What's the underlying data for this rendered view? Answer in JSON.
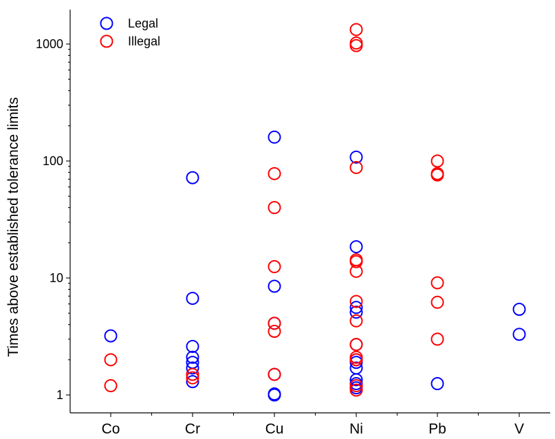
{
  "chart_data": {
    "type": "scatter",
    "title": "",
    "xlabel": "",
    "ylabel": "Times above established tolerance limits",
    "categories": [
      "Co",
      "Cr",
      "Cu",
      "Ni",
      "Pb",
      "V"
    ],
    "y_scale": "log",
    "ylim": [
      0.85,
      2000
    ],
    "y_ticks": [
      1,
      10,
      100,
      1000
    ],
    "y_tick_labels": [
      "1",
      "10",
      "100",
      "1000"
    ],
    "grid": false,
    "legend": {
      "placement": "top-left",
      "entries": [
        "Legal",
        "Illegal"
      ]
    },
    "colors": {
      "Legal": "#0000ff",
      "Illegal": "#ff0000"
    },
    "series": [
      {
        "name": "Legal",
        "points": [
          {
            "x": "Co",
            "y": 3.2
          },
          {
            "x": "Cr",
            "y": 72
          },
          {
            "x": "Cr",
            "y": 6.7
          },
          {
            "x": "Cr",
            "y": 2.6
          },
          {
            "x": "Cr",
            "y": 2.1
          },
          {
            "x": "Cr",
            "y": 1.9
          },
          {
            "x": "Cr",
            "y": 1.7
          },
          {
            "x": "Cr",
            "y": 1.5
          },
          {
            "x": "Cr",
            "y": 1.3
          },
          {
            "x": "Cu",
            "y": 160
          },
          {
            "x": "Cu",
            "y": 8.5
          },
          {
            "x": "Cu",
            "y": 4.1
          },
          {
            "x": "Cu",
            "y": 1.5
          },
          {
            "x": "Cu",
            "y": 1.02
          },
          {
            "x": "Cu",
            "y": 1.0
          },
          {
            "x": "Ni",
            "y": 108
          },
          {
            "x": "Ni",
            "y": 18.5
          },
          {
            "x": "Ni",
            "y": 5.6
          },
          {
            "x": "Ni",
            "y": 5.1
          },
          {
            "x": "Ni",
            "y": 2.7
          },
          {
            "x": "Ni",
            "y": 2.0
          },
          {
            "x": "Ni",
            "y": 1.9
          },
          {
            "x": "Ni",
            "y": 1.7
          },
          {
            "x": "Ni",
            "y": 1.35
          },
          {
            "x": "Ni",
            "y": 1.25
          },
          {
            "x": "Ni",
            "y": 1.15
          },
          {
            "x": "Pb",
            "y": 1.25
          },
          {
            "x": "V",
            "y": 5.4
          },
          {
            "x": "V",
            "y": 3.3
          }
        ]
      },
      {
        "name": "Illegal",
        "points": [
          {
            "x": "Co",
            "y": 2.0
          },
          {
            "x": "Co",
            "y": 1.2
          },
          {
            "x": "Cr",
            "y": 1.5
          },
          {
            "x": "Cr",
            "y": 1.4
          },
          {
            "x": "Cu",
            "y": 78
          },
          {
            "x": "Cu",
            "y": 40
          },
          {
            "x": "Cu",
            "y": 12.5
          },
          {
            "x": "Cu",
            "y": 4.1
          },
          {
            "x": "Cu",
            "y": 3.5
          },
          {
            "x": "Cu",
            "y": 1.5
          },
          {
            "x": "Ni",
            "y": 1330
          },
          {
            "x": "Ni",
            "y": 1020
          },
          {
            "x": "Ni",
            "y": 970
          },
          {
            "x": "Ni",
            "y": 88
          },
          {
            "x": "Ni",
            "y": 14.3
          },
          {
            "x": "Ni",
            "y": 13.8
          },
          {
            "x": "Ni",
            "y": 11.4
          },
          {
            "x": "Ni",
            "y": 6.3
          },
          {
            "x": "Ni",
            "y": 4.3
          },
          {
            "x": "Ni",
            "y": 2.7
          },
          {
            "x": "Ni",
            "y": 2.1
          },
          {
            "x": "Ni",
            "y": 2.0
          },
          {
            "x": "Ni",
            "y": 1.2
          },
          {
            "x": "Ni",
            "y": 1.1
          },
          {
            "x": "Pb",
            "y": 100
          },
          {
            "x": "Pb",
            "y": 78
          },
          {
            "x": "Pb",
            "y": 76
          },
          {
            "x": "Pb",
            "y": 9.1
          },
          {
            "x": "Pb",
            "y": 6.2
          },
          {
            "x": "Pb",
            "y": 3.0
          }
        ]
      }
    ]
  }
}
